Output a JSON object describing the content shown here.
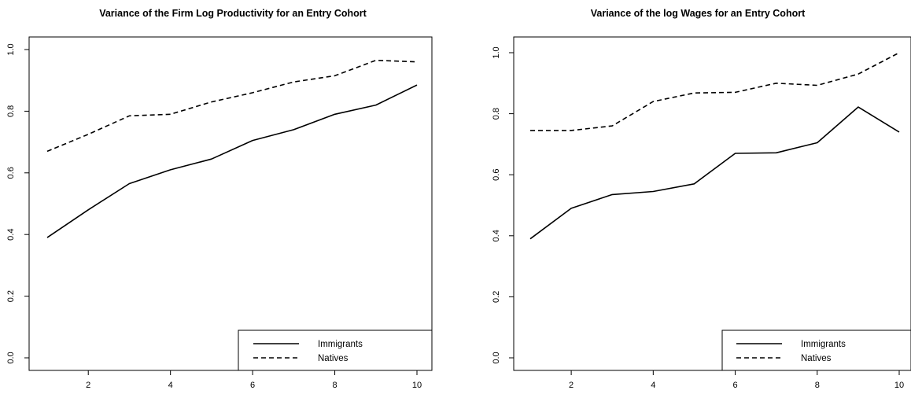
{
  "chart_data": [
    {
      "type": "line",
      "title": "Variance of the Firm Log Productivity for an Entry Cohort",
      "xlabel": "",
      "ylabel": "",
      "x": [
        1,
        2,
        3,
        4,
        5,
        6,
        7,
        8,
        9,
        10
      ],
      "xticks": [
        "2",
        "4",
        "6",
        "8",
        "10"
      ],
      "yticks": [
        "0.0",
        "0.2",
        "0.4",
        "0.6",
        "0.8",
        "1.0"
      ],
      "xlim": [
        1,
        10
      ],
      "ylim": [
        0,
        1
      ],
      "legend_position": "bottom-right",
      "series": [
        {
          "name": "Immigrants",
          "line_style": "solid",
          "values": [
            0.39,
            0.48,
            0.565,
            0.61,
            0.645,
            0.705,
            0.74,
            0.79,
            0.82,
            0.885
          ]
        },
        {
          "name": "Natives",
          "line_style": "dashed",
          "values": [
            0.67,
            0.725,
            0.785,
            0.79,
            0.83,
            0.86,
            0.895,
            0.915,
            0.965,
            0.96
          ]
        }
      ]
    },
    {
      "type": "line",
      "title": "Variance of the log Wages for an Entry Cohort",
      "xlabel": "",
      "ylabel": "",
      "x": [
        1,
        2,
        3,
        4,
        5,
        6,
        7,
        8,
        9,
        10
      ],
      "xticks": [
        "2",
        "4",
        "6",
        "8",
        "10"
      ],
      "yticks": [
        "0.0",
        "0.2",
        "0.4",
        "0.6",
        "0.8",
        "1.0"
      ],
      "xlim": [
        1,
        10
      ],
      "ylim": [
        0,
        1
      ],
      "legend_position": "bottom-right",
      "series": [
        {
          "name": "Immigrants",
          "line_style": "solid",
          "values": [
            0.39,
            0.49,
            0.535,
            0.545,
            0.57,
            0.67,
            0.672,
            0.705,
            0.822,
            0.74
          ]
        },
        {
          "name": "Natives",
          "line_style": "dashed",
          "values": [
            0.745,
            0.745,
            0.76,
            0.84,
            0.868,
            0.87,
            0.9,
            0.893,
            0.93,
            1.0
          ]
        }
      ]
    }
  ]
}
